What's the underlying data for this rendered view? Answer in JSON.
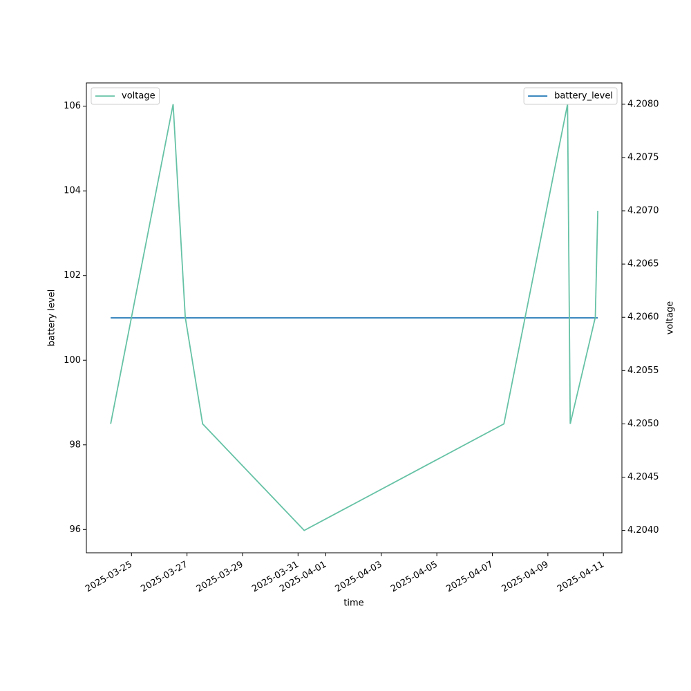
{
  "chart_data": {
    "type": "line",
    "x_label": "time",
    "y_label": "battery level",
    "y2_label": "voltage",
    "x": [
      "2025-03-24T06:00",
      "2025-03-26T12:00",
      "2025-03-26T22:30",
      "2025-03-27T13:30",
      "2025-03-31T05:20",
      "2025-04-07T10:00",
      "2025-04-09T17:00",
      "2025-04-09T19:20",
      "2025-04-10T17:00",
      "2025-04-10T19:10"
    ],
    "series": [
      {
        "name": "battery_level",
        "color": "#1f77b4",
        "axis": "y",
        "values": [
          101,
          101,
          101,
          101,
          101,
          101,
          101,
          101,
          101,
          101
        ]
      },
      {
        "name": "voltage",
        "color": "#66c2a5",
        "axis": "y2",
        "values": [
          4.205,
          4.208,
          4.206,
          4.205,
          4.204,
          4.205,
          4.208,
          4.205,
          4.206,
          4.207
        ]
      }
    ],
    "xlim": [
      "2025-03-23T09:00",
      "2025-04-11T16:00"
    ],
    "xticks": [
      "2025-03-25",
      "2025-03-27",
      "2025-03-29",
      "2025-03-31",
      "2025-04-01",
      "2025-04-03",
      "2025-04-05",
      "2025-04-07",
      "2025-04-09",
      "2025-04-11"
    ],
    "ylim": [
      95.45,
      106.55
    ],
    "yticks": [
      96,
      98,
      100,
      102,
      104,
      106
    ],
    "y2lim": [
      4.20379,
      4.2082
    ],
    "y2ticks": [
      {
        "value": 4.204,
        "label": "4.2040"
      },
      4.2045,
      {
        "value": 4.205,
        "label": "4.2050"
      },
      4.2055,
      {
        "value": 4.206,
        "label": "4.2060"
      },
      4.2065,
      {
        "value": 4.207,
        "label": "4.2070"
      },
      4.2075,
      {
        "value": 4.208,
        "label": "4.2080"
      }
    ],
    "legend_y": "upper right",
    "legend_y2": "upper left",
    "grid": false
  }
}
